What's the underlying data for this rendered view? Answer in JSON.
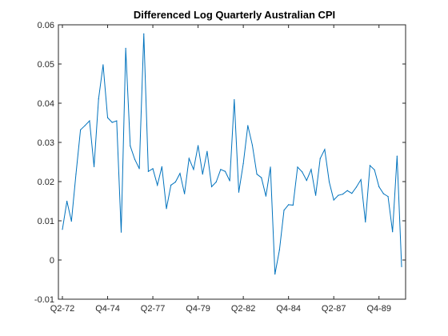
{
  "chart_data": {
    "type": "line",
    "title": "Differenced Log Quarterly Australian CPI",
    "xlabel": "",
    "ylabel": "",
    "ylim": [
      -0.01,
      0.06
    ],
    "yticks": [
      -0.01,
      0,
      0.01,
      0.02,
      0.03,
      0.04,
      0.05,
      0.06
    ],
    "ytick_labels": [
      "-0.01",
      "0",
      "0.01",
      "0.02",
      "0.03",
      "0.04",
      "0.05",
      "0.06"
    ],
    "xticks": [
      "Q2-72",
      "Q4-74",
      "Q2-77",
      "Q4-79",
      "Q2-82",
      "Q4-84",
      "Q2-87",
      "Q4-89"
    ],
    "grid": false,
    "line_color": "#0072BD",
    "series": [
      {
        "x": [
          "Q2-72",
          "Q3-72",
          "Q4-72",
          "Q1-73",
          "Q2-73",
          "Q3-73",
          "Q4-73",
          "Q1-74",
          "Q2-74",
          "Q3-74",
          "Q4-74",
          "Q1-75",
          "Q2-75",
          "Q3-75",
          "Q4-75",
          "Q1-76",
          "Q2-76",
          "Q3-76",
          "Q4-76",
          "Q1-77",
          "Q2-77",
          "Q3-77",
          "Q4-77",
          "Q1-78",
          "Q2-78",
          "Q3-78",
          "Q4-78",
          "Q1-79",
          "Q2-79",
          "Q3-79",
          "Q4-79",
          "Q1-80",
          "Q2-80",
          "Q3-80",
          "Q4-80",
          "Q1-81",
          "Q2-81",
          "Q3-81",
          "Q4-81",
          "Q1-82",
          "Q2-82",
          "Q3-82",
          "Q4-82",
          "Q1-83",
          "Q2-83",
          "Q3-83",
          "Q4-83",
          "Q1-84",
          "Q2-84",
          "Q3-84",
          "Q4-84",
          "Q1-85",
          "Q2-85",
          "Q3-85",
          "Q4-85",
          "Q1-86",
          "Q2-86",
          "Q3-86",
          "Q4-86",
          "Q1-87",
          "Q2-87",
          "Q3-87",
          "Q4-87",
          "Q1-88",
          "Q2-88",
          "Q3-88",
          "Q4-88",
          "Q1-89",
          "Q2-89",
          "Q3-89",
          "Q4-89",
          "Q1-90",
          "Q2-90",
          "Q3-90",
          "Q4-90",
          "Q1-91"
        ],
        "values": [
          0.0078,
          0.015,
          0.0099,
          0.0219,
          0.0332,
          0.0343,
          0.0355,
          0.0238,
          0.0411,
          0.0498,
          0.0363,
          0.0351,
          0.0355,
          0.0071,
          0.054,
          0.0291,
          0.0257,
          0.0233,
          0.0577,
          0.0226,
          0.0233,
          0.0191,
          0.0238,
          0.0131,
          0.0191,
          0.0199,
          0.0221,
          0.0169,
          0.0259,
          0.0231,
          0.0292,
          0.0219,
          0.0277,
          0.0187,
          0.0199,
          0.0231,
          0.0226,
          0.0202,
          0.0409,
          0.0173,
          0.0246,
          0.0343,
          0.0293,
          0.0219,
          0.021,
          0.0163,
          0.0237,
          -0.0036,
          0.0026,
          0.0127,
          0.0141,
          0.014,
          0.0237,
          0.0225,
          0.0203,
          0.0231,
          0.0165,
          0.0259,
          0.0282,
          0.0199,
          0.0153,
          0.0165,
          0.0168,
          0.0177,
          0.017,
          0.0186,
          0.0205,
          0.0097,
          0.0241,
          0.023,
          0.0187,
          0.0169,
          0.0162,
          0.0072,
          0.0265,
          -0.0017
        ]
      }
    ]
  }
}
